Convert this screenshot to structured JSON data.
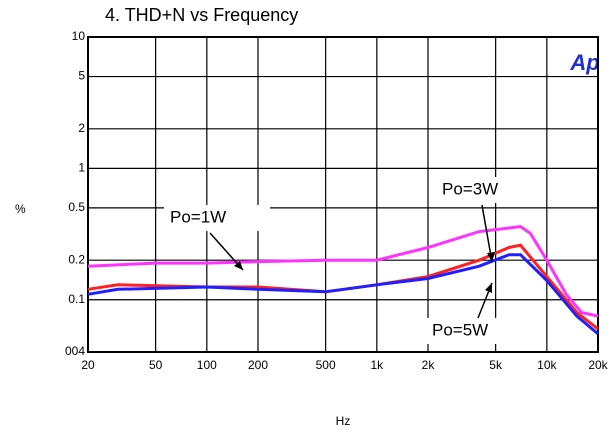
{
  "chart_data": {
    "type": "line",
    "title": "4. THD+N vs Frequency",
    "xlabel": "Hz",
    "ylabel": "%",
    "logo": "Ap",
    "xscale": "log",
    "yscale": "log",
    "grid": true,
    "xlim": [
      20,
      20000
    ],
    "ylim": [
      0.04,
      10
    ],
    "xticks": [
      20,
      50,
      100,
      200,
      500,
      {
        "value": 1000,
        "label": "1k"
      },
      {
        "value": 2000,
        "label": "2k"
      },
      {
        "value": 5000,
        "label": "5k"
      },
      {
        "value": 10000,
        "label": "10k"
      },
      {
        "value": 20000,
        "label": "20k"
      }
    ],
    "yticks": [
      10,
      5,
      2,
      1,
      0.5,
      0.2,
      0.1,
      {
        "value": 0.04,
        "label": "004"
      }
    ],
    "annotations": [
      "Po=1W",
      "Po=3W",
      "Po=5W"
    ],
    "series": [
      {
        "color": "#ff33ff",
        "x": [
          20,
          50,
          100,
          200,
          500,
          1000,
          2000,
          4000,
          7000,
          8000,
          10000,
          13000,
          16000,
          20000
        ],
        "values": [
          0.18,
          0.19,
          0.19,
          0.195,
          0.2,
          0.2,
          0.25,
          0.33,
          0.36,
          0.32,
          0.2,
          0.11,
          0.08,
          0.075
        ]
      },
      {
        "color": "#ff2020",
        "x": [
          20,
          30,
          100,
          200,
          500,
          1000,
          2000,
          4000,
          6000,
          7000,
          10000,
          15000,
          20000
        ],
        "values": [
          0.12,
          0.13,
          0.125,
          0.125,
          0.115,
          0.13,
          0.15,
          0.2,
          0.25,
          0.26,
          0.15,
          0.08,
          0.06
        ]
      },
      {
        "color": "#2020ff",
        "x": [
          20,
          30,
          100,
          200,
          500,
          1000,
          2000,
          4000,
          6000,
          7000,
          10000,
          15000,
          20000
        ],
        "values": [
          0.11,
          0.12,
          0.125,
          0.12,
          0.115,
          0.13,
          0.145,
          0.18,
          0.22,
          0.22,
          0.14,
          0.075,
          0.055
        ]
      }
    ]
  }
}
